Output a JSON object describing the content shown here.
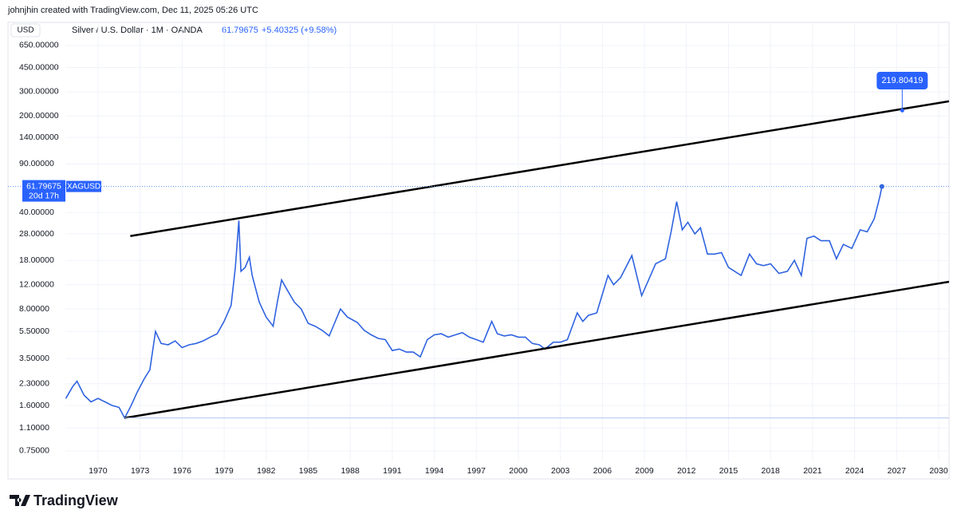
{
  "header": {
    "credit": "johnjhin created with TradingView.com, Dec 11, 2025 05:26 UTC",
    "currency_button": "USD",
    "symbol": "Silver / U.S. Dollar · 1M · OANDA",
    "last": 61.79675,
    "change": "+5.40325 (+9.58%)",
    "logo": "TradingView"
  },
  "chart_data": {
    "type": "line",
    "log_scale": true,
    "grid": true,
    "xlim": [
      1967.67,
      2030.74
    ],
    "xticks": [
      1970,
      1973,
      1976,
      1979,
      1982,
      1985,
      1988,
      1991,
      1994,
      1997,
      2000,
      2003,
      2006,
      2009,
      2012,
      2015,
      2018,
      2021,
      2024,
      2027,
      2030
    ],
    "ylim": [
      0.47,
      930
    ],
    "yticks": [
      {
        "value": 0.75,
        "label": "0.75000"
      },
      {
        "value": 1.1,
        "label": "1.10000"
      },
      {
        "value": 1.6,
        "label": "1.60000"
      },
      {
        "value": 2.3,
        "label": "2.30000"
      },
      {
        "value": 3.5,
        "label": "3.50000"
      },
      {
        "value": 5.5,
        "label": "5.50000"
      },
      {
        "value": 8,
        "label": "8.00000"
      },
      {
        "value": 12,
        "label": "12.00000"
      },
      {
        "value": 18,
        "label": "18.00000"
      },
      {
        "value": 28,
        "label": "28.00000"
      },
      {
        "value": 40,
        "label": "40.00000"
      },
      {
        "value": 90,
        "label": "90.00000"
      },
      {
        "value": 140,
        "label": "140.00000"
      },
      {
        "value": 200,
        "label": "200.00000"
      },
      {
        "value": 300,
        "label": "300.00000"
      },
      {
        "value": 450,
        "label": "450.00000"
      },
      {
        "value": 650,
        "label": "650.00000"
      }
    ],
    "series": [
      {
        "name": "XAGUSD",
        "color": "#2f63e0",
        "x": [
          1967.7,
          1968.2,
          1968.5,
          1969,
          1969.5,
          1970,
          1970.5,
          1971,
          1971.5,
          1971.9,
          1972.3,
          1972.8,
          1973.3,
          1973.7,
          1974.1,
          1974.5,
          1975,
          1975.5,
          1976,
          1976.5,
          1977,
          1977.5,
          1978,
          1978.5,
          1979,
          1979.5,
          1979.8,
          1980.05,
          1980.2,
          1980.5,
          1980.8,
          1981,
          1981.5,
          1982,
          1982.5,
          1982.8,
          1983.1,
          1983.5,
          1984,
          1984.5,
          1985,
          1985.5,
          1986,
          1986.5,
          1987.3,
          1987.8,
          1988.5,
          1989,
          1989.5,
          1990,
          1990.5,
          1991,
          1991.5,
          1992,
          1992.5,
          1993,
          1993.5,
          1994,
          1994.5,
          1995,
          1995.5,
          1996,
          1996.5,
          1997,
          1997.5,
          1998.1,
          1998.5,
          1999,
          1999.5,
          2000,
          2000.5,
          2001,
          2001.5,
          2001.9,
          2002.5,
          2003,
          2003.5,
          2004.2,
          2004.6,
          2005,
          2005.6,
          2006.4,
          2006.8,
          2007.3,
          2008.1,
          2008.8,
          2009.3,
          2009.8,
          2010.5,
          2010.9,
          2011.3,
          2011.7,
          2012.1,
          2012.6,
          2013,
          2013.5,
          2014,
          2014.5,
          2015,
          2015.9,
          2016.5,
          2017,
          2017.5,
          2018,
          2018.6,
          2019.2,
          2019.7,
          2020.2,
          2020.6,
          2021.1,
          2021.6,
          2022.2,
          2022.7,
          2023.2,
          2023.8,
          2024.4,
          2024.9,
          2025.4,
          2025.8,
          2025.95
        ],
        "values": [
          1.8,
          2.2,
          2.4,
          1.9,
          1.7,
          1.8,
          1.7,
          1.6,
          1.55,
          1.3,
          1.55,
          2.0,
          2.5,
          2.9,
          5.5,
          4.5,
          4.4,
          4.7,
          4.2,
          4.4,
          4.5,
          4.7,
          5.0,
          5.3,
          6.5,
          8.5,
          16,
          35,
          15,
          16,
          19,
          14,
          9,
          7,
          6,
          9,
          13,
          11,
          9,
          8,
          6.3,
          6.0,
          5.6,
          5.1,
          8.0,
          7.0,
          6.4,
          5.6,
          5.2,
          4.9,
          4.8,
          4.0,
          4.1,
          3.9,
          3.9,
          3.6,
          4.8,
          5.2,
          5.3,
          5.0,
          5.2,
          5.4,
          5.0,
          4.8,
          4.6,
          6.5,
          5.3,
          5.1,
          5.2,
          5.0,
          5.0,
          4.5,
          4.4,
          4.1,
          4.6,
          4.6,
          4.8,
          7.5,
          6.5,
          7.2,
          7.5,
          14,
          12,
          13.5,
          19.5,
          10,
          13,
          17,
          18.5,
          29,
          48,
          30,
          34,
          28,
          31,
          20,
          20,
          20.5,
          16,
          14,
          20,
          17,
          16.5,
          17,
          14.5,
          15,
          18,
          14,
          26,
          27,
          25,
          25,
          18.5,
          23.5,
          22,
          30,
          29,
          36,
          52,
          61.79675
        ]
      }
    ],
    "price_label": {
      "value": 61.79675,
      "countdown": "20d 17h"
    },
    "trendlines": [
      {
        "x": [
          1972.3,
          2030.74
        ],
        "values": [
          27,
          256
        ]
      },
      {
        "x": [
          1971.9,
          2030.74
        ],
        "values": [
          1.3,
          12.6
        ]
      }
    ],
    "callout": {
      "x": 2027.4,
      "value": 219.80419
    }
  }
}
